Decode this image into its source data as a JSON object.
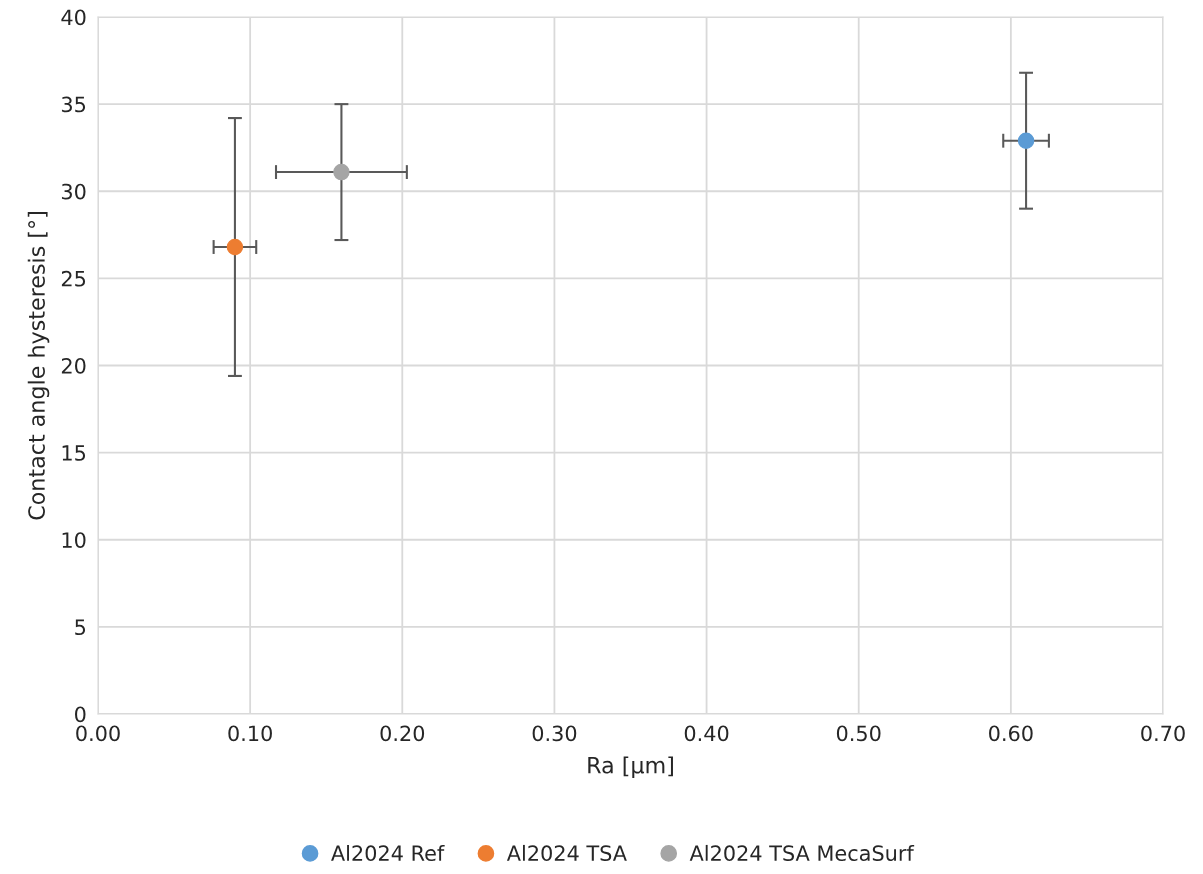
{
  "chart_data": {
    "type": "scatter",
    "xlabel": "Ra [µm]",
    "ylabel": "Contact angle hysteresis [°]",
    "xlim": [
      0,
      0.7
    ],
    "xticks": [
      {
        "value": 0,
        "label": "0.00"
      },
      {
        "value": 0.1,
        "label": "0.10"
      },
      {
        "value": 0.2,
        "label": "0.20"
      },
      {
        "value": 0.3,
        "label": "0.30"
      },
      {
        "value": 0.4,
        "label": "0.40"
      },
      {
        "value": 0.5,
        "label": "0.50"
      },
      {
        "value": 0.6,
        "label": "0.60"
      },
      {
        "value": 0.7,
        "label": "0.70"
      }
    ],
    "ylim": [
      0,
      40
    ],
    "yticks": [
      0,
      5,
      10,
      15,
      20,
      25,
      30,
      35,
      40
    ],
    "grid": true,
    "legend": "bottom",
    "marker": "circle",
    "series": [
      {
        "name": "Al2024 Ref",
        "color": "#5b9bd5",
        "x": [
          0.61
        ],
        "values": [
          32.9
        ],
        "errors": [
          3.9
        ],
        "xerrors": [
          0.015
        ]
      },
      {
        "name": "Al2024 TSA",
        "color": "#ed7d31",
        "x": [
          0.09
        ],
        "values": [
          26.8
        ],
        "errors": [
          7.4
        ],
        "xerrors": [
          0.014
        ]
      },
      {
        "name": "Al2024 TSA MecaSurf",
        "color": "#a5a5a5",
        "x": [
          0.16
        ],
        "values": [
          31.1
        ],
        "errors": [
          3.9
        ],
        "xerrors": [
          0.043
        ]
      }
    ]
  }
}
